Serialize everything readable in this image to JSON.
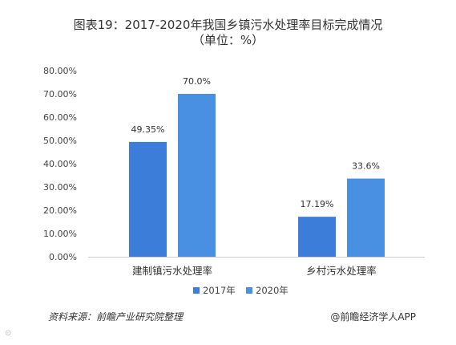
{
  "chart_data": {
    "type": "bar",
    "title_line1": "图表19：2017-2020年我国乡镇污水处理率目标完成情况",
    "title_line2": "（单位：%）",
    "categories": [
      "建制镇污水处理率",
      "乡村污水处理率"
    ],
    "series": [
      {
        "name": "2017年",
        "color": "#3b7dd8",
        "values": [
          49.35,
          17.19
        ],
        "labels": [
          "49.35%",
          "17.19%"
        ]
      },
      {
        "name": "2020年",
        "color": "#4a90e2",
        "values": [
          70.0,
          33.6
        ],
        "labels": [
          "70.0%",
          "33.6%"
        ]
      }
    ],
    "ylim": [
      0,
      80
    ],
    "yticks": [
      "0.00%",
      "10.00%",
      "20.00%",
      "30.00%",
      "40.00%",
      "50.00%",
      "60.00%",
      "70.00%",
      "80.00%"
    ],
    "grid": false,
    "legend_position": "bottom"
  },
  "footer": {
    "source": "资料来源：前瞻产业研究院整理",
    "brand": "@前瞻经济学人APP"
  }
}
